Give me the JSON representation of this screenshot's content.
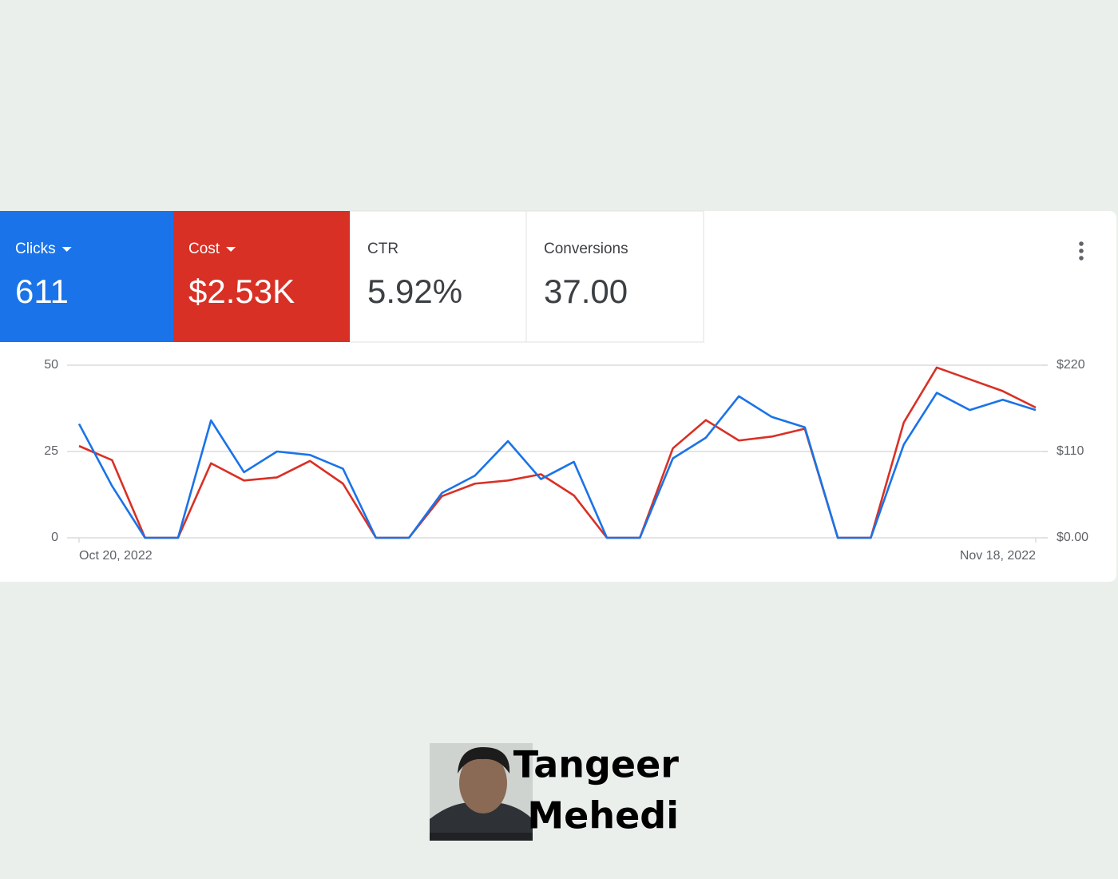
{
  "chart_data": {
    "type": "line",
    "categories": [
      "Oct 20, 2022",
      null,
      null,
      null,
      null,
      null,
      null,
      null,
      null,
      null,
      null,
      null,
      null,
      null,
      null,
      null,
      null,
      null,
      null,
      null,
      null,
      null,
      null,
      null,
      null,
      null,
      null,
      null,
      null,
      "Nov 18, 2022"
    ],
    "series": [
      {
        "name": "Clicks",
        "total": "611",
        "color": "#1a73e8",
        "axis": "y",
        "values": [
          33,
          15,
          0,
          0,
          34,
          19,
          25,
          24,
          20,
          0,
          0,
          13,
          18,
          28,
          17,
          22,
          0,
          0,
          23,
          29,
          41,
          35,
          32,
          0,
          0,
          27,
          42,
          37,
          40,
          37
        ]
      },
      {
        "name": "Cost",
        "total": "$2.53K",
        "color": "#d93025",
        "axis": "y2",
        "values": [
          117,
          99,
          0,
          0,
          95,
          73,
          77,
          98,
          69,
          0,
          0,
          53,
          69,
          73,
          81,
          54,
          0,
          0,
          114,
          150,
          124,
          129,
          139,
          0,
          0,
          147,
          217,
          202,
          187,
          166
        ]
      }
    ],
    "ylim": [
      0,
      50
    ],
    "yticks": [
      0,
      25,
      50
    ],
    "y2lim": [
      0,
      220
    ],
    "y2ticks": [
      {
        "value": 0,
        "label": "$0.00"
      },
      {
        "value": 110,
        "label": "$110"
      },
      {
        "value": 220,
        "label": "$220"
      }
    ],
    "grid": true
  },
  "metrics": [
    {
      "label": "CTR",
      "value": "5.92%"
    },
    {
      "label": "Conversions",
      "value": "37.00"
    }
  ],
  "footer": {
    "name_lines": [
      "Tangeer",
      "Mehedi"
    ]
  }
}
